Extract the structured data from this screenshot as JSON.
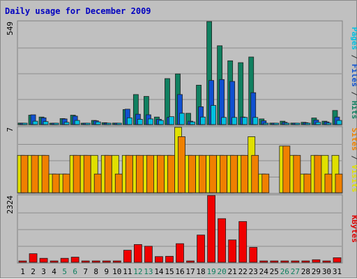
{
  "chart_data": {
    "type": "bar",
    "title": "Daily usage for December 2009",
    "categories": [
      "1",
      "2",
      "3",
      "4",
      "5",
      "6",
      "7",
      "8",
      "9",
      "10",
      "11",
      "12",
      "13",
      "14",
      "15",
      "16",
      "17",
      "18",
      "19",
      "20",
      "21",
      "22",
      "23",
      "24",
      "25",
      "26",
      "27",
      "28",
      "29",
      "30",
      "31"
    ],
    "weekend_days": [
      "5",
      "6",
      "12",
      "13",
      "19",
      "20",
      "26",
      "27"
    ],
    "panels": [
      {
        "id": "hits-panel",
        "max_label": "549",
        "ylim": [
          0,
          549
        ],
        "axis_label_parts": [
          {
            "text": "Pages",
            "color": "#00c0e0"
          },
          {
            "text": " / ",
            "color": "#303030"
          },
          {
            "text": "Files",
            "color": "#1050d0"
          },
          {
            "text": " / ",
            "color": "#303030"
          },
          {
            "text": "Hits",
            "color": "#108060"
          }
        ],
        "series": [
          {
            "name": "Hits",
            "color": "#108060",
            "values": [
              8,
              50,
              40,
              6,
              32,
              50,
              4,
              22,
              10,
              8,
              80,
              160,
              150,
              40,
              245,
              270,
              60,
              210,
              549,
              420,
              340,
              330,
              360,
              30,
              8,
              18,
              8,
              12,
              35,
              18,
              75
            ]
          },
          {
            "name": "Files",
            "color": "#1050d0",
            "values": [
              6,
              52,
              36,
              5,
              30,
              45,
              3,
              20,
              8,
              6,
              82,
              55,
              52,
              28,
              38,
              160,
              18,
              95,
              235,
              240,
              230,
              40,
              170,
              20,
              5,
              12,
              6,
              10,
              24,
              14,
              40
            ]
          },
          {
            "name": "Pages",
            "color": "#00c0e0",
            "values": [
              2,
              18,
              16,
              2,
              12,
              22,
              2,
              14,
              6,
              5,
              36,
              28,
              30,
              22,
              42,
              60,
              14,
              40,
              102,
              38,
              38,
              38,
              38,
              4,
              2,
              6,
              2,
              6,
              12,
              8,
              22
            ]
          }
        ]
      },
      {
        "id": "sites-panel",
        "max_label": "7",
        "ylim": [
          0,
          7
        ],
        "axis_label_parts": [
          {
            "text": "Sites",
            "color": "#f08000"
          },
          {
            "text": " / ",
            "color": "#303030"
          },
          {
            "text": "Visits",
            "color": "#e0e000"
          }
        ],
        "series": [
          {
            "name": "Visits",
            "color": "#e0e000",
            "values": [
              4,
              4,
              4,
              2,
              2,
              4,
              4,
              4,
              4,
              4,
              4,
              4,
              4,
              4,
              4,
              7,
              4,
              4,
              4,
              4,
              4,
              4,
              6,
              2,
              0,
              5,
              4,
              2,
              4,
              4,
              4
            ]
          },
          {
            "name": "Sites",
            "color": "#f08000",
            "values": [
              4,
              4,
              4,
              2,
              2,
              4,
              4,
              2,
              4,
              2,
              4,
              4,
              4,
              4,
              4,
              6,
              4,
              4,
              4,
              4,
              4,
              4,
              4,
              2,
              0,
              5,
              4,
              2,
              4,
              2,
              2
            ]
          }
        ]
      },
      {
        "id": "kbytes-panel",
        "max_label": "2324",
        "ylim": [
          0,
          2324
        ],
        "axis_label_parts": [
          {
            "text": "KBytes",
            "color": "#e00000"
          }
        ],
        "series": [
          {
            "name": "KBytes",
            "color": "#f00000",
            "values": [
              40,
              300,
              140,
              15,
              140,
              180,
              5,
              20,
              20,
              5,
              420,
              620,
              560,
              200,
              210,
              650,
              15,
              950,
              2324,
              1520,
              780,
              1420,
              520,
              25,
              5,
              5,
              5,
              15,
              90,
              35,
              160
            ]
          }
        ]
      }
    ]
  }
}
